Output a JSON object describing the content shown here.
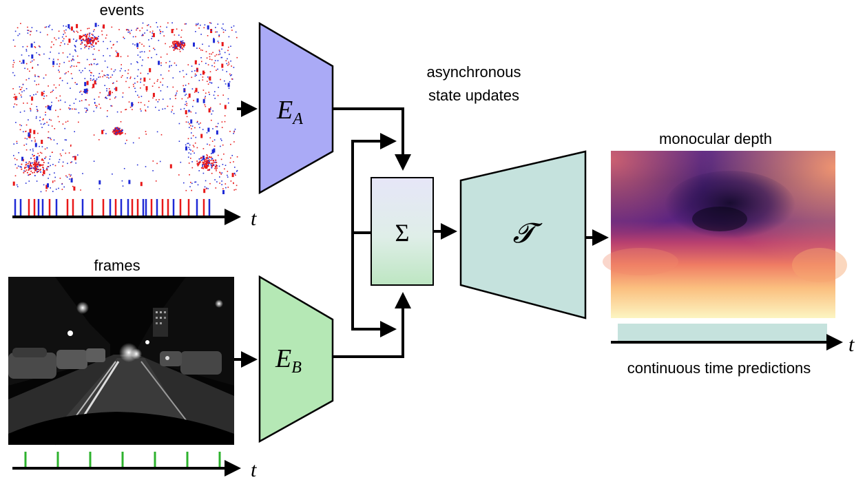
{
  "labels": {
    "events": "events",
    "frames": "frames",
    "async_line1": "asynchronous",
    "async_line2": "state updates",
    "depth": "monocular depth",
    "continuous": "continuous time predictions"
  },
  "symbols": {
    "encoder_a": "E",
    "encoder_a_sub": "A",
    "encoder_b": "E",
    "encoder_b_sub": "B",
    "sum": "Σ",
    "transformer": "𝓣",
    "time": "t"
  },
  "colors": {
    "encoder_a": "#aaaaf6",
    "encoder_b": "#b5e8b5",
    "decoder": "#c5e2dd",
    "event_pos": "#e81818",
    "event_neg": "#1f2ad6",
    "frame_tick": "#2db22d",
    "timeline_bar": "#c5e2dd"
  },
  "icons": {
    "events_image": "event-camera-image",
    "frames_image": "night-street-frame-image",
    "depth_image": "depth-map-image"
  }
}
